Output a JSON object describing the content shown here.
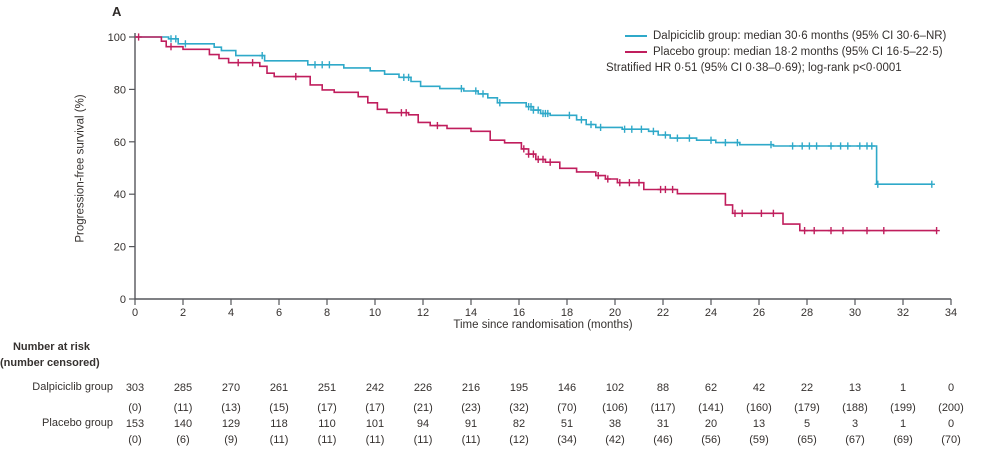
{
  "panel_label": "A",
  "colors": {
    "dalpiciclib": "#2FA9C9",
    "placebo": "#C01E5D",
    "axis": "#55565B",
    "text": "#35312F"
  },
  "legend": {
    "entries": [
      {
        "name": "Dalpiciclib group",
        "label": "Dalpiciclib group: median 30·6 months (95% CI 30·6–NR)",
        "color_key": "dalpiciclib"
      },
      {
        "name": "Placebo group",
        "label": "Placebo group: median 18·2 months (95% CI 16·5–22·5)",
        "color_key": "placebo"
      }
    ],
    "stats_line": "Stratified HR 0·51 (95% CI 0·38–0·69); log-rank p<0·0001"
  },
  "chart_data": {
    "type": "line",
    "subtype": "kaplan-meier-step",
    "title": "",
    "xlabel": "Time since randomisation (months)",
    "ylabel": "Progression-free survival (%)",
    "xlim": [
      0,
      34
    ],
    "ylim": [
      0,
      100
    ],
    "xticks": [
      0,
      2,
      4,
      6,
      8,
      10,
      12,
      14,
      16,
      18,
      20,
      22,
      24,
      26,
      28,
      30,
      32,
      34
    ],
    "yticks": [
      0,
      20,
      40,
      60,
      80,
      100
    ],
    "grid": false,
    "legend_position": "top-right",
    "series": [
      {
        "name": "Dalpiciclib group",
        "color": "#2FA9C9",
        "points": [
          [
            0,
            100
          ],
          [
            1.4,
            99.3
          ],
          [
            1.8,
            97.4
          ],
          [
            3.3,
            96.1
          ],
          [
            3.6,
            94.8
          ],
          [
            4.2,
            92.9
          ],
          [
            5.4,
            90.9
          ],
          [
            7.2,
            89.4
          ],
          [
            8.7,
            88.2
          ],
          [
            9.8,
            87.1
          ],
          [
            10.4,
            85.8
          ],
          [
            11.0,
            84.6
          ],
          [
            11.5,
            83.0
          ],
          [
            11.9,
            81.2
          ],
          [
            12.7,
            80.3
          ],
          [
            13.7,
            79.4
          ],
          [
            14.3,
            78.3
          ],
          [
            14.7,
            76.8
          ],
          [
            15.1,
            74.9
          ],
          [
            16.3,
            73.4
          ],
          [
            16.6,
            72.1
          ],
          [
            16.9,
            70.8
          ],
          [
            17.3,
            70.1
          ],
          [
            18.4,
            68.4
          ],
          [
            18.8,
            66.6
          ],
          [
            19.2,
            65.5
          ],
          [
            20.3,
            64.8
          ],
          [
            21.4,
            64.0
          ],
          [
            21.8,
            62.6
          ],
          [
            22.3,
            61.4
          ],
          [
            23.4,
            60.6
          ],
          [
            24.2,
            59.7
          ],
          [
            25.2,
            58.9
          ],
          [
            26.6,
            58.4
          ],
          [
            30.9,
            43.8
          ],
          [
            33.2,
            43.8
          ]
        ],
        "censor_marks": [
          1.5,
          1.7,
          2.1,
          5.3,
          7.5,
          7.8,
          8.1,
          11.2,
          11.4,
          13.6,
          14.2,
          14.5,
          15.2,
          16.4,
          16.5,
          16.6,
          16.8,
          17.0,
          17.1,
          17.2,
          18.1,
          18.6,
          19.0,
          19.4,
          20.4,
          20.7,
          21.1,
          21.6,
          22.1,
          22.6,
          23.1,
          24.0,
          24.6,
          25.1,
          26.5,
          27.4,
          27.8,
          28.1,
          28.4,
          29.0,
          29.4,
          29.7,
          30.2,
          30.5,
          30.7,
          30.95,
          33.2
        ]
      },
      {
        "name": "Placebo group",
        "color": "#C01E5D",
        "points": [
          [
            0,
            100
          ],
          [
            1.1,
            98.4
          ],
          [
            1.3,
            96.3
          ],
          [
            2.0,
            95.3
          ],
          [
            3.1,
            93.3
          ],
          [
            3.5,
            91.8
          ],
          [
            3.9,
            90.2
          ],
          [
            5.2,
            88.8
          ],
          [
            5.5,
            86.2
          ],
          [
            5.8,
            84.9
          ],
          [
            7.3,
            81.7
          ],
          [
            7.8,
            79.8
          ],
          [
            8.3,
            78.9
          ],
          [
            9.3,
            77.2
          ],
          [
            9.7,
            74.9
          ],
          [
            10.1,
            72.4
          ],
          [
            10.5,
            71.1
          ],
          [
            11.4,
            70.3
          ],
          [
            11.8,
            67.4
          ],
          [
            12.3,
            66.2
          ],
          [
            13.0,
            65.1
          ],
          [
            14.0,
            64.0
          ],
          [
            14.8,
            60.6
          ],
          [
            15.4,
            59.6
          ],
          [
            16.1,
            57.3
          ],
          [
            16.4,
            55.3
          ],
          [
            16.7,
            53.3
          ],
          [
            17.1,
            52.2
          ],
          [
            17.7,
            49.9
          ],
          [
            18.4,
            48.5
          ],
          [
            19.2,
            47.1
          ],
          [
            19.6,
            45.8
          ],
          [
            20.1,
            44.4
          ],
          [
            21.2,
            41.8
          ],
          [
            22.6,
            40.2
          ],
          [
            24.6,
            35.9
          ],
          [
            24.9,
            32.7
          ],
          [
            27.0,
            28.6
          ],
          [
            27.7,
            26.1
          ],
          [
            33.4,
            26.1
          ]
        ],
        "censor_marks": [
          0.15,
          1.5,
          4.3,
          4.9,
          6.7,
          11.1,
          11.3,
          12.6,
          16.2,
          16.4,
          16.6,
          16.8,
          17.0,
          17.3,
          19.3,
          19.7,
          20.2,
          20.6,
          21.0,
          21.9,
          22.1,
          22.4,
          25.0,
          25.3,
          26.1,
          26.6,
          27.9,
          28.3,
          29.0,
          29.5,
          30.5,
          31.2,
          33.4
        ]
      }
    ]
  },
  "risk_table": {
    "header_line1": "Number at risk",
    "header_line2": "(number censored)",
    "time_points": [
      0,
      2,
      4,
      6,
      8,
      10,
      12,
      14,
      16,
      18,
      20,
      22,
      24,
      26,
      28,
      30,
      32,
      34
    ],
    "rows": [
      {
        "label": "Dalpiciclib group",
        "at_risk": [
          "303",
          "285",
          "270",
          "261",
          "251",
          "242",
          "226",
          "216",
          "195",
          "146",
          "102",
          "88",
          "62",
          "42",
          "22",
          "13",
          "1",
          "0"
        ],
        "censored": [
          "(0)",
          "(11)",
          "(13)",
          "(15)",
          "(17)",
          "(17)",
          "(21)",
          "(23)",
          "(32)",
          "(70)",
          "(106)",
          "(117)",
          "(141)",
          "(160)",
          "(179)",
          "(188)",
          "(199)",
          "(200)"
        ]
      },
      {
        "label": "Placebo group",
        "at_risk": [
          "153",
          "140",
          "129",
          "118",
          "110",
          "101",
          "94",
          "91",
          "82",
          "51",
          "38",
          "31",
          "20",
          "13",
          "5",
          "3",
          "1",
          "0"
        ],
        "censored": [
          "(0)",
          "(6)",
          "(9)",
          "(11)",
          "(11)",
          "(11)",
          "(11)",
          "(11)",
          "(12)",
          "(34)",
          "(42)",
          "(46)",
          "(56)",
          "(59)",
          "(65)",
          "(67)",
          "(69)",
          "(70)"
        ]
      }
    ]
  }
}
